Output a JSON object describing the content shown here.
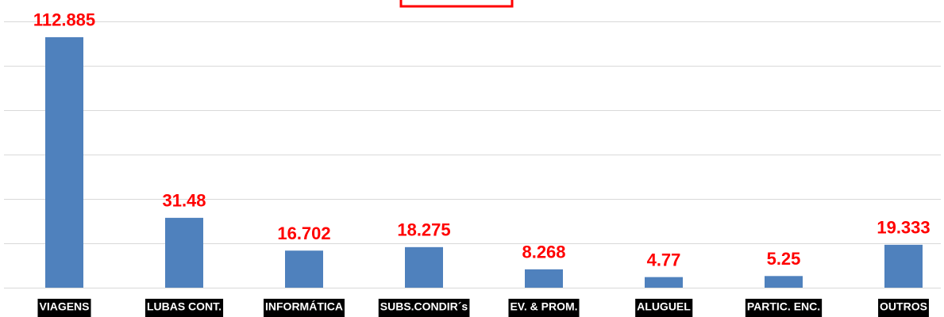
{
  "chart_data": {
    "type": "bar",
    "categories": [
      "VIAGENS",
      "LUBAS CONT.",
      "INFORMÁTICA",
      "SUBS.CONDIR´s",
      "EV. & PROM.",
      "ALUGUEL",
      "PARTIC. ENC.",
      "OUTROS"
    ],
    "values": [
      112.885,
      31.48,
      16.702,
      18.275,
      8.268,
      4.77,
      5.25,
      19.333
    ],
    "color": "#4f81bd",
    "label_color": "#ff0000",
    "ylim": [
      0,
      120
    ],
    "yticks": [
      0,
      20,
      40,
      60,
      80,
      100,
      120
    ],
    "grid": true
  }
}
